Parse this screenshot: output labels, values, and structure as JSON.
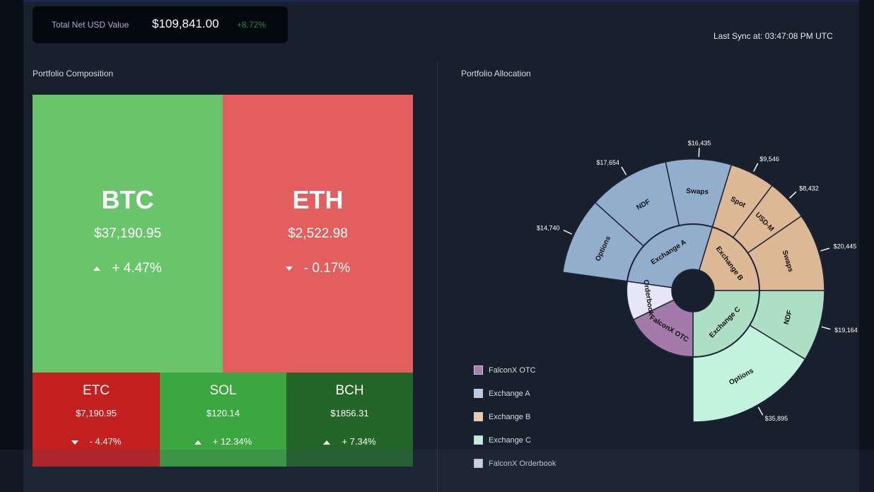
{
  "header": {
    "total_label": "Total Net USD Value",
    "total_value": "$109,841.00",
    "total_change": "+8.72%",
    "last_sync": "Last Sync at: 03:47:08 PM UTC"
  },
  "composition": {
    "title": "Portfolio Composition",
    "tiles": [
      {
        "symbol": "BTC",
        "price": "$37,190.95",
        "change": "+ 4.47%",
        "direction": "up",
        "color": "#69c46c"
      },
      {
        "symbol": "ETH",
        "price": "$2,522.98",
        "change": "- 0.17%",
        "direction": "down",
        "color": "#e35e5e"
      },
      {
        "symbol": "ETC",
        "price": "$7,190.95",
        "change": "- 4.47%",
        "direction": "down",
        "color": "#c42020"
      },
      {
        "symbol": "SOL",
        "price": "$120.14",
        "change": "+ 12.34%",
        "direction": "up",
        "color": "#3ca640"
      },
      {
        "symbol": "BCH",
        "price": "$1856.31",
        "change": "+ 7.34%",
        "direction": "up",
        "color": "#236628"
      }
    ]
  },
  "allocation": {
    "title": "Portfolio Allocation",
    "legend": [
      {
        "label": "FalconX OTC",
        "color": "#a77bab"
      },
      {
        "label": "Exchange A",
        "color": "#b8cbe8"
      },
      {
        "label": "Exchange B",
        "color": "#f2c9a0"
      },
      {
        "label": "Exchange C",
        "color": "#bdf0d4"
      },
      {
        "label": "FalconX Orderbook",
        "color": "#eeeef8"
      }
    ]
  },
  "chart_data": {
    "type": "sunburst",
    "title": "Portfolio Allocation",
    "inner": [
      {
        "name": "Exchange A",
        "color": "#93aecd",
        "start": 188,
        "end": 287
      },
      {
        "name": "Exchange B",
        "color": "#dcb895",
        "start": 287,
        "end": 360
      },
      {
        "name": "Exchange C",
        "color": "#addfc4",
        "start": 0,
        "end": 90
      },
      {
        "name": "FalconX OTC",
        "color": "#a37aa9",
        "start": 90,
        "end": 154
      },
      {
        "name": "Orderbook",
        "color": "#e6e6f6",
        "start": 154,
        "end": 188
      }
    ],
    "outer": [
      {
        "name": "Options",
        "parent": "Exchange A",
        "value": "$14,740",
        "color": "#93aecd",
        "start": 188,
        "end": 222
      },
      {
        "name": "NDF",
        "parent": "Exchange A",
        "value": "$17,654",
        "color": "#93aecd",
        "start": 222,
        "end": 258
      },
      {
        "name": "Swaps",
        "parent": "Exchange A",
        "value": "$16,435",
        "color": "#93aecd",
        "start": 258,
        "end": 287
      },
      {
        "name": "Spot",
        "parent": "Exchange B",
        "value": "$9,546",
        "color": "#dcb895",
        "start": 287,
        "end": 307
      },
      {
        "name": "USD-M",
        "parent": "Exchange B",
        "value": "$8,432",
        "color": "#dcb895",
        "start": 307,
        "end": 325.5
      },
      {
        "name": "Swaps",
        "parent": "Exchange B",
        "value": "$20,445",
        "color": "#dcb895",
        "start": 325.5,
        "end": 360
      },
      {
        "name": "NDF",
        "parent": "Exchange C",
        "value": "$19,164",
        "color": "#addfc4",
        "start": 0,
        "end": 31.5
      },
      {
        "name": "Options",
        "parent": "Exchange C",
        "value": "$35,895",
        "color": "#c3f3dc",
        "start": 31.5,
        "end": 90
      }
    ]
  }
}
